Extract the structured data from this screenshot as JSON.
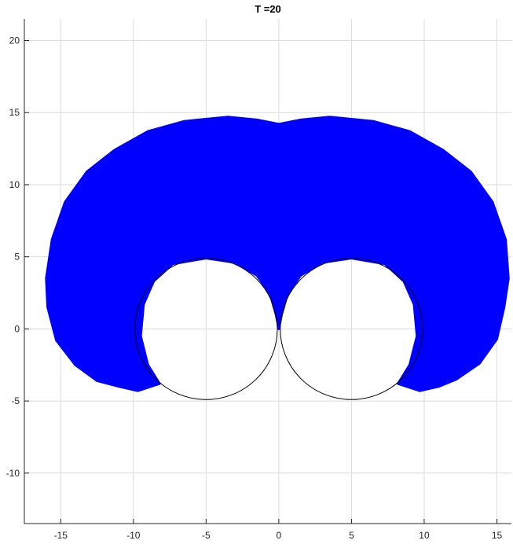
{
  "chart_data": {
    "type": "scatter",
    "title": "T =20",
    "xlabel": "",
    "ylabel": "",
    "xlim": [
      -17.5,
      16.0
    ],
    "ylim": [
      -13.5,
      21.5
    ],
    "xticks": [
      -15,
      -10,
      -5,
      0,
      5,
      10,
      15
    ],
    "yticks": [
      -10,
      -5,
      0,
      5,
      10,
      15,
      20
    ],
    "grid": true,
    "marker_color": "#0000ff",
    "circle_color": "#000000",
    "series": [
      {
        "kind": "filled-region",
        "outline": [
          [
            -8.2,
            -3.8
          ],
          [
            -9.7,
            -4.3
          ],
          [
            -11.0,
            -4.0
          ],
          [
            -12.5,
            -3.6
          ],
          [
            -14.0,
            -2.5
          ],
          [
            -15.3,
            -0.8
          ],
          [
            -15.9,
            1.5
          ],
          [
            -16.0,
            3.5
          ],
          [
            -15.6,
            6.2
          ],
          [
            -14.7,
            8.8
          ],
          [
            -13.2,
            10.9
          ],
          [
            -11.3,
            12.4
          ],
          [
            -9.0,
            13.7
          ],
          [
            -6.5,
            14.4
          ],
          [
            -3.5,
            14.7
          ],
          [
            -1.5,
            14.5
          ],
          [
            0.0,
            14.2
          ],
          [
            1.5,
            14.5
          ],
          [
            3.5,
            14.7
          ],
          [
            6.5,
            14.4
          ],
          [
            9.0,
            13.7
          ],
          [
            11.3,
            12.4
          ],
          [
            13.2,
            10.9
          ],
          [
            14.7,
            8.8
          ],
          [
            15.6,
            6.2
          ],
          [
            15.8,
            3.5
          ],
          [
            15.5,
            1.5
          ],
          [
            15.0,
            -0.7
          ],
          [
            13.8,
            -2.4
          ],
          [
            12.2,
            -3.5
          ],
          [
            11.0,
            -4.0
          ],
          [
            9.7,
            -4.3
          ],
          [
            8.2,
            -3.8
          ],
          [
            9.0,
            -2.5
          ],
          [
            9.5,
            -0.5
          ],
          [
            9.3,
            1.7
          ],
          [
            8.6,
            3.3
          ],
          [
            7.3,
            4.5
          ],
          [
            5.0,
            4.9
          ],
          [
            3.0,
            4.6
          ],
          [
            1.5,
            3.7
          ],
          [
            0.6,
            2.4
          ],
          [
            0.2,
            1.0
          ],
          [
            0.0,
            0.0
          ],
          [
            -0.2,
            1.0
          ],
          [
            -0.6,
            2.4
          ],
          [
            -1.5,
            3.7
          ],
          [
            -3.0,
            4.6
          ],
          [
            -5.0,
            4.9
          ],
          [
            -7.3,
            4.5
          ],
          [
            -8.6,
            3.3
          ],
          [
            -9.3,
            1.7
          ],
          [
            -9.5,
            -0.5
          ],
          [
            -9.0,
            -2.5
          ]
        ]
      }
    ],
    "circles": [
      {
        "cx": -5,
        "cy": 0,
        "r": 4.9
      },
      {
        "cx": 5,
        "cy": 0,
        "r": 4.9
      }
    ]
  }
}
